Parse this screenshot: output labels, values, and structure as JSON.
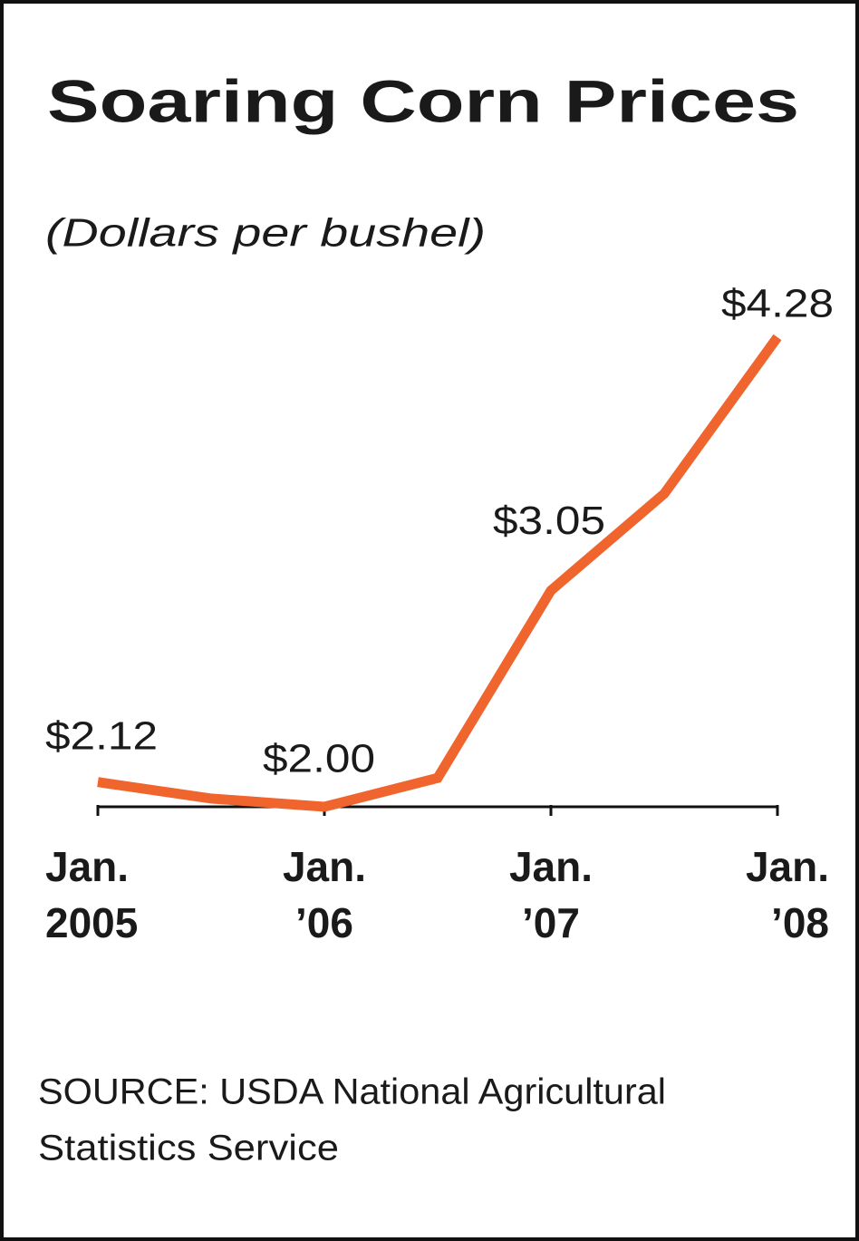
{
  "chart_data": {
    "type": "line",
    "title": "Soaring Corn Prices",
    "subtitle": "(Dollars per bushel)",
    "categories": [
      "Jan. 2005",
      null,
      "Jan. ’06",
      null,
      "Jan. ’07",
      null,
      "Jan. ’08"
    ],
    "series": [
      {
        "name": "Corn price",
        "color": "#f0652d",
        "values": [
          2.12,
          2.04,
          2.0,
          2.14,
          3.05,
          3.52,
          4.28
        ],
        "value_labels": [
          "$2.12",
          null,
          "$2.00",
          null,
          "$3.05",
          null,
          "$4.28"
        ]
      }
    ],
    "source": [
      "SOURCE: USDA National Agricultural",
      "Statistics Service"
    ]
  }
}
